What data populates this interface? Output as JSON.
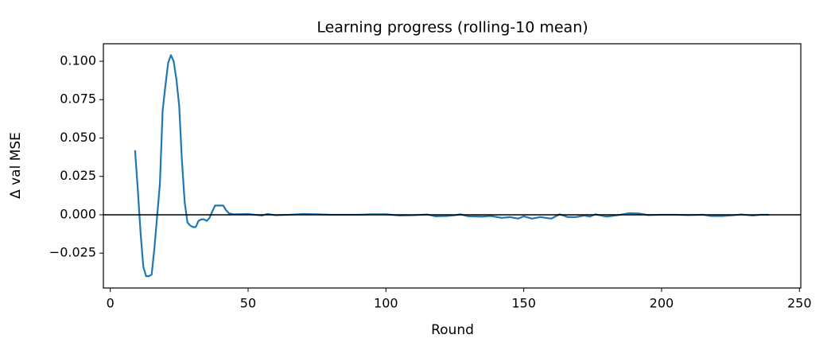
{
  "chart_data": {
    "type": "line",
    "title": "Learning progress (rolling-10 mean)",
    "x_label": "Round",
    "y_label": "Δ val MSE",
    "x": [
      9,
      10,
      11,
      12,
      13,
      14,
      15,
      16,
      17,
      18,
      19,
      20,
      21,
      22,
      23,
      24,
      25,
      26,
      27,
      28,
      29,
      30,
      31,
      32,
      33,
      34,
      35,
      36,
      37,
      38,
      39,
      40,
      41,
      42,
      43,
      44,
      45,
      50,
      55,
      57,
      60,
      65,
      70,
      75,
      80,
      85,
      90,
      95,
      100,
      105,
      110,
      115,
      118,
      122,
      125,
      127,
      130,
      135,
      138,
      142,
      145,
      148,
      150,
      153,
      156,
      160,
      163,
      166,
      169,
      172,
      174,
      176,
      180,
      184,
      188,
      192,
      195,
      200,
      205,
      210,
      215,
      218,
      222,
      226,
      229,
      233,
      236,
      239
    ],
    "series": [
      {
        "name": "rolling-10 mean",
        "color": "#1f77b4",
        "values": [
          0.042,
          0.016,
          -0.012,
          -0.034,
          -0.04,
          -0.04,
          -0.039,
          -0.022,
          -0.001,
          0.02,
          0.068,
          0.084,
          0.099,
          0.104,
          0.1,
          0.088,
          0.071,
          0.035,
          0.008,
          -0.005,
          -0.007,
          -0.008,
          -0.008,
          -0.004,
          -0.003,
          -0.003,
          -0.004,
          -0.002,
          0.002,
          0.006,
          0.006,
          0.006,
          0.006,
          0.003,
          0.001,
          0.0005,
          0.0003,
          0.0005,
          -0.0005,
          0.0005,
          -0.0003,
          0,
          0.0005,
          0.0003,
          0,
          0,
          0,
          0.0003,
          0.0003,
          -0.0005,
          -0.0003,
          0.0002,
          -0.001,
          -0.0008,
          -0.0003,
          0.0003,
          -0.001,
          -0.0012,
          -0.0008,
          -0.002,
          -0.0015,
          -0.0025,
          -0.001,
          -0.0025,
          -0.0015,
          -0.0025,
          0.0003,
          -0.0015,
          -0.0015,
          -0.0005,
          -0.0012,
          0.0003,
          -0.0012,
          -0.0003,
          0.001,
          0.0008,
          -0.0002,
          0,
          0,
          -0.0002,
          0,
          -0.0008,
          -0.0008,
          -0.0003,
          0.0002,
          -0.0005,
          0,
          0
        ]
      }
    ],
    "reference_line": {
      "value": 0,
      "color": "#000000"
    },
    "xlim": [
      -2.5,
      250.5
    ],
    "ylim": [
      -0.0477,
      0.1114
    ],
    "xticks": [
      0,
      50,
      100,
      150,
      200,
      250
    ],
    "yticks": [
      {
        "value": -0.025,
        "label": "−0.025"
      },
      {
        "value": 0,
        "label": "0.000"
      },
      {
        "value": 0.025,
        "label": "0.025"
      },
      {
        "value": 0.05,
        "label": "0.050"
      },
      {
        "value": 0.075,
        "label": "0.075"
      },
      {
        "value": 0.1,
        "label": "0.100"
      }
    ],
    "grid": false
  }
}
